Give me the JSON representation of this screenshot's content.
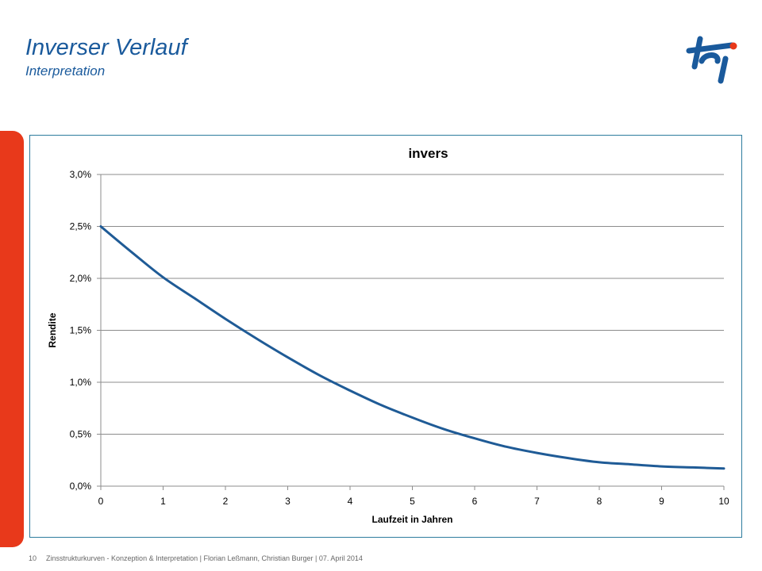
{
  "slide": {
    "title": "Inverser Verlauf",
    "subtitle": "Interpretation",
    "accent_color": "#e8391b",
    "title_color": "#1a5a9c",
    "logo_icon": "hj-logo-icon"
  },
  "footer": {
    "page_number": "10",
    "text": "Zinsstrukturkurven - Konzeption & Interpretation | Florian Leßmann, Christian Burger | 07. April 2014"
  },
  "chart_data": {
    "type": "line",
    "title": "invers",
    "xlabel": "Laufzeit in Jahren",
    "ylabel": "Rendite",
    "xlim": [
      0,
      10
    ],
    "ylim": [
      0,
      0.03
    ],
    "x_ticks": [
      "0",
      "1",
      "2",
      "3",
      "4",
      "5",
      "6",
      "7",
      "8",
      "9",
      "10"
    ],
    "y_ticks": [
      "0,0%",
      "0,5%",
      "1,0%",
      "1,5%",
      "2,0%",
      "2,5%",
      "3,0%"
    ],
    "grid": true,
    "legend": "none",
    "series": [
      {
        "color": "#1f5b96",
        "x": [
          0,
          0.5,
          1,
          1.5,
          2,
          2.5,
          3,
          3.5,
          4,
          4.5,
          5,
          5.5,
          6,
          6.5,
          7,
          7.5,
          8,
          8.5,
          9,
          9.5,
          10
        ],
        "y": [
          0.025,
          0.0225,
          0.0201,
          0.0181,
          0.0161,
          0.0142,
          0.0124,
          0.0107,
          0.0092,
          0.0078,
          0.0066,
          0.0055,
          0.0046,
          0.0038,
          0.0032,
          0.0027,
          0.0023,
          0.0021,
          0.0019,
          0.0018,
          0.0017
        ]
      }
    ]
  }
}
